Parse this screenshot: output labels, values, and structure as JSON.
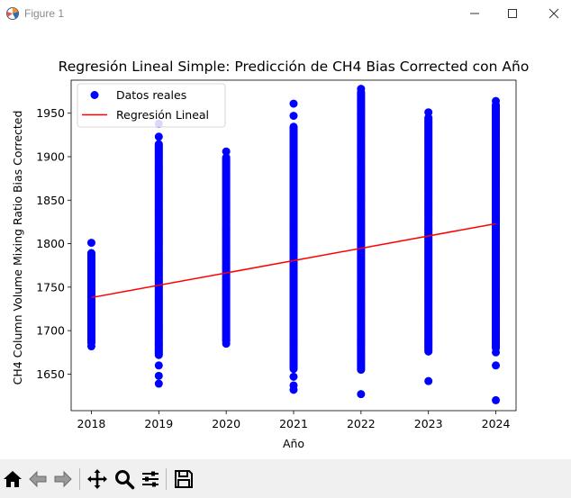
{
  "window": {
    "title": "Figure 1"
  },
  "toolbar": {
    "buttons": [
      "home-icon",
      "back-arrow-icon",
      "forward-arrow-icon",
      "pan-icon",
      "zoom-icon",
      "configure-subplots-icon",
      "save-icon"
    ]
  },
  "chart_data": {
    "type": "scatter",
    "title": "Regresión Lineal Simple: Predicción de CH4 Bias Corrected con Año",
    "xlabel": "Año",
    "ylabel": "CH4 Column Volume Mixing Ratio Bias Corrected",
    "xlim": [
      2017.7,
      2024.3
    ],
    "ylim": [
      1608,
      1988
    ],
    "x_ticks": [
      2018,
      2019,
      2020,
      2021,
      2022,
      2023,
      2024
    ],
    "x_tick_labels": [
      "2018",
      "2019",
      "2020",
      "2021",
      "2022",
      "2023",
      "2024"
    ],
    "y_ticks": [
      1650,
      1700,
      1750,
      1800,
      1850,
      1900,
      1950
    ],
    "y_tick_labels": [
      "1650",
      "1700",
      "1750",
      "1800",
      "1850",
      "1900",
      "1950"
    ],
    "grid": false,
    "legend": {
      "placement": "top-left",
      "entries": [
        "Datos reales",
        "Regresión Lineal"
      ]
    },
    "series": [
      {
        "name": "Datos reales",
        "kind": "scatter",
        "color": "#0000ff",
        "per_year_ranges": [
          {
            "x": 2018,
            "dense_min": 1686,
            "dense_max": 1790,
            "outliers": [
              1682,
              1801
            ]
          },
          {
            "x": 2019,
            "dense_min": 1672,
            "dense_max": 1915,
            "outliers": [
              1639,
              1648,
              1660,
              1923,
              1938
            ]
          },
          {
            "x": 2020,
            "dense_min": 1688,
            "dense_max": 1900,
            "outliers": [
              1685,
              1906
            ]
          },
          {
            "x": 2021,
            "dense_min": 1656,
            "dense_max": 1935,
            "outliers": [
              1632,
              1637,
              1647,
              1947,
              1961
            ]
          },
          {
            "x": 2022,
            "dense_min": 1655,
            "dense_max": 1975,
            "outliers": [
              1627,
              1978
            ]
          },
          {
            "x": 2023,
            "dense_min": 1676,
            "dense_max": 1945,
            "outliers": [
              1642,
              1951
            ]
          },
          {
            "x": 2024,
            "dense_min": 1680,
            "dense_max": 1960,
            "outliers": [
              1620,
              1660,
              1675,
              1964
            ]
          }
        ]
      },
      {
        "name": "Regresión Lineal",
        "kind": "line",
        "color": "#ff0000",
        "x": [
          2018,
          2024
        ],
        "y": [
          1738,
          1823
        ]
      }
    ]
  }
}
